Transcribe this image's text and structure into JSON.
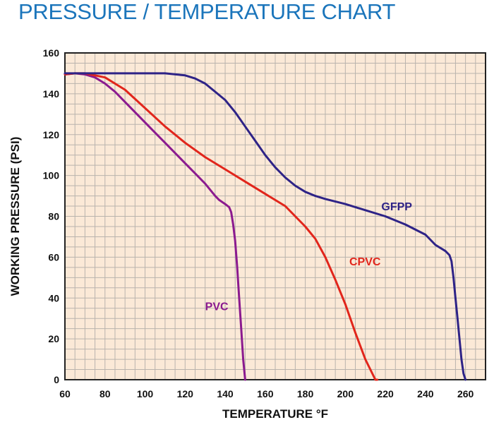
{
  "chart_data": {
    "type": "line",
    "title": "PRESSURE / TEMPERATURE CHART",
    "xlabel": "TEMPERATURE °F",
    "ylabel": "WORKING PRESSURE (PSI)",
    "xlim": [
      60,
      270
    ],
    "ylim": [
      0,
      160
    ],
    "x_ticks": [
      60,
      80,
      100,
      120,
      140,
      160,
      180,
      200,
      220,
      240,
      260
    ],
    "y_ticks": [
      0,
      20,
      40,
      60,
      80,
      100,
      120,
      140,
      160
    ],
    "grid": true,
    "legend": "inline labels",
    "colors": {
      "title": "#1b75bb",
      "plot_background": "#fbe9d7",
      "grid": "#b9b3ad",
      "text": "#111111"
    },
    "series": [
      {
        "name": "PVC",
        "color": "#8b1a8f",
        "x": [
          60,
          65,
          70,
          75,
          80,
          85,
          90,
          95,
          100,
          105,
          110,
          115,
          120,
          125,
          130,
          135,
          137,
          140,
          142,
          143,
          144,
          145,
          146,
          147,
          148,
          149,
          150
        ],
        "y": [
          149.5,
          150,
          149.5,
          148,
          145,
          141,
          136,
          131,
          126,
          121,
          116,
          111,
          106,
          101,
          96,
          90,
          88,
          86,
          84.5,
          82,
          76,
          68,
          55,
          40,
          25,
          10,
          0
        ]
      },
      {
        "name": "CPVC",
        "color": "#e1251b",
        "x": [
          60,
          65,
          70,
          75,
          80,
          90,
          100,
          110,
          120,
          130,
          140,
          150,
          160,
          170,
          180,
          185,
          190,
          195,
          200,
          205,
          210,
          215,
          216
        ],
        "y": [
          149.5,
          150,
          150,
          149,
          148,
          142,
          133,
          124,
          116,
          109,
          103,
          97,
          91,
          85,
          75,
          69,
          60,
          49,
          37,
          23,
          10,
          0,
          0
        ]
      },
      {
        "name": "GFPP",
        "color": "#2e2387",
        "x": [
          60,
          70,
          80,
          90,
          100,
          110,
          120,
          125,
          130,
          135,
          140,
          145,
          150,
          155,
          160,
          165,
          170,
          175,
          180,
          185,
          190,
          200,
          210,
          220,
          230,
          240,
          245,
          250,
          252,
          253,
          254,
          255,
          256,
          257,
          258,
          259,
          260
        ],
        "y": [
          150,
          150,
          150,
          150,
          150,
          150,
          149,
          147.5,
          145,
          141,
          137,
          131,
          124,
          117,
          110,
          104,
          99,
          95,
          92,
          90,
          88.5,
          86,
          83,
          80,
          76,
          71,
          66,
          63,
          61,
          58,
          50,
          40,
          30,
          20,
          10,
          3,
          0
        ]
      }
    ]
  },
  "series_labels": [
    {
      "text": "PVC",
      "color": "#8b1a8f"
    },
    {
      "text": "CPVC",
      "color": "#e1251b"
    },
    {
      "text": "GFPP",
      "color": "#2e2387"
    }
  ]
}
